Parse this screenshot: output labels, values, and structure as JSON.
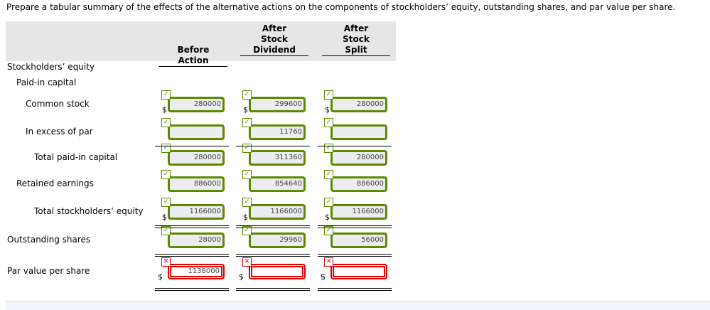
{
  "prompt": "Prepare a tabular summary of the effects of the alternative actions on the components of stockholders’ equity, outstanding shares, and par value per share.",
  "columns": [
    [
      "",
      "Before",
      "Action"
    ],
    [
      "After",
      "Stock",
      "Dividend"
    ],
    [
      "After",
      "Stock",
      "Split"
    ]
  ],
  "rows": [
    {
      "label": "Stockholders’ equity",
      "indent": 0,
      "heading": true
    },
    {
      "label": "Paid-in capital",
      "indent": 1,
      "heading": true
    },
    {
      "label": "Common stock",
      "indent": 2,
      "dollar": true,
      "values": [
        "280000",
        "299600",
        "280000"
      ],
      "status": "correct"
    },
    {
      "label": "In excess of par",
      "indent": 2,
      "values": [
        "",
        "11760",
        ""
      ],
      "status": "correct"
    },
    {
      "label": "Total paid-in capital",
      "indent": 3,
      "values": [
        "280000",
        "311360",
        "280000"
      ],
      "status": "correct"
    },
    {
      "label": "Retained earnings",
      "indent": 1,
      "values": [
        "886000",
        "854640",
        "886000"
      ],
      "status": "correct"
    },
    {
      "label": "Total stockholders’ equity",
      "indent": 3,
      "dollar": true,
      "values": [
        "1166000",
        "1166000",
        "1166000"
      ],
      "status": "correct"
    },
    {
      "label": "Outstanding shares",
      "indent": 0,
      "values": [
        "28000",
        "29960",
        "56000"
      ],
      "status": "correct"
    },
    {
      "label": "Par value per share",
      "indent": 0,
      "dollar": true,
      "values": [
        "1138000",
        "",
        ""
      ],
      "status": "incorrect"
    }
  ],
  "currency_symbol": "$",
  "icons": {
    "correct": "check-icon",
    "incorrect": "x-icon"
  },
  "colors": {
    "correct": "#5a8a00",
    "incorrect": "#e00000"
  }
}
